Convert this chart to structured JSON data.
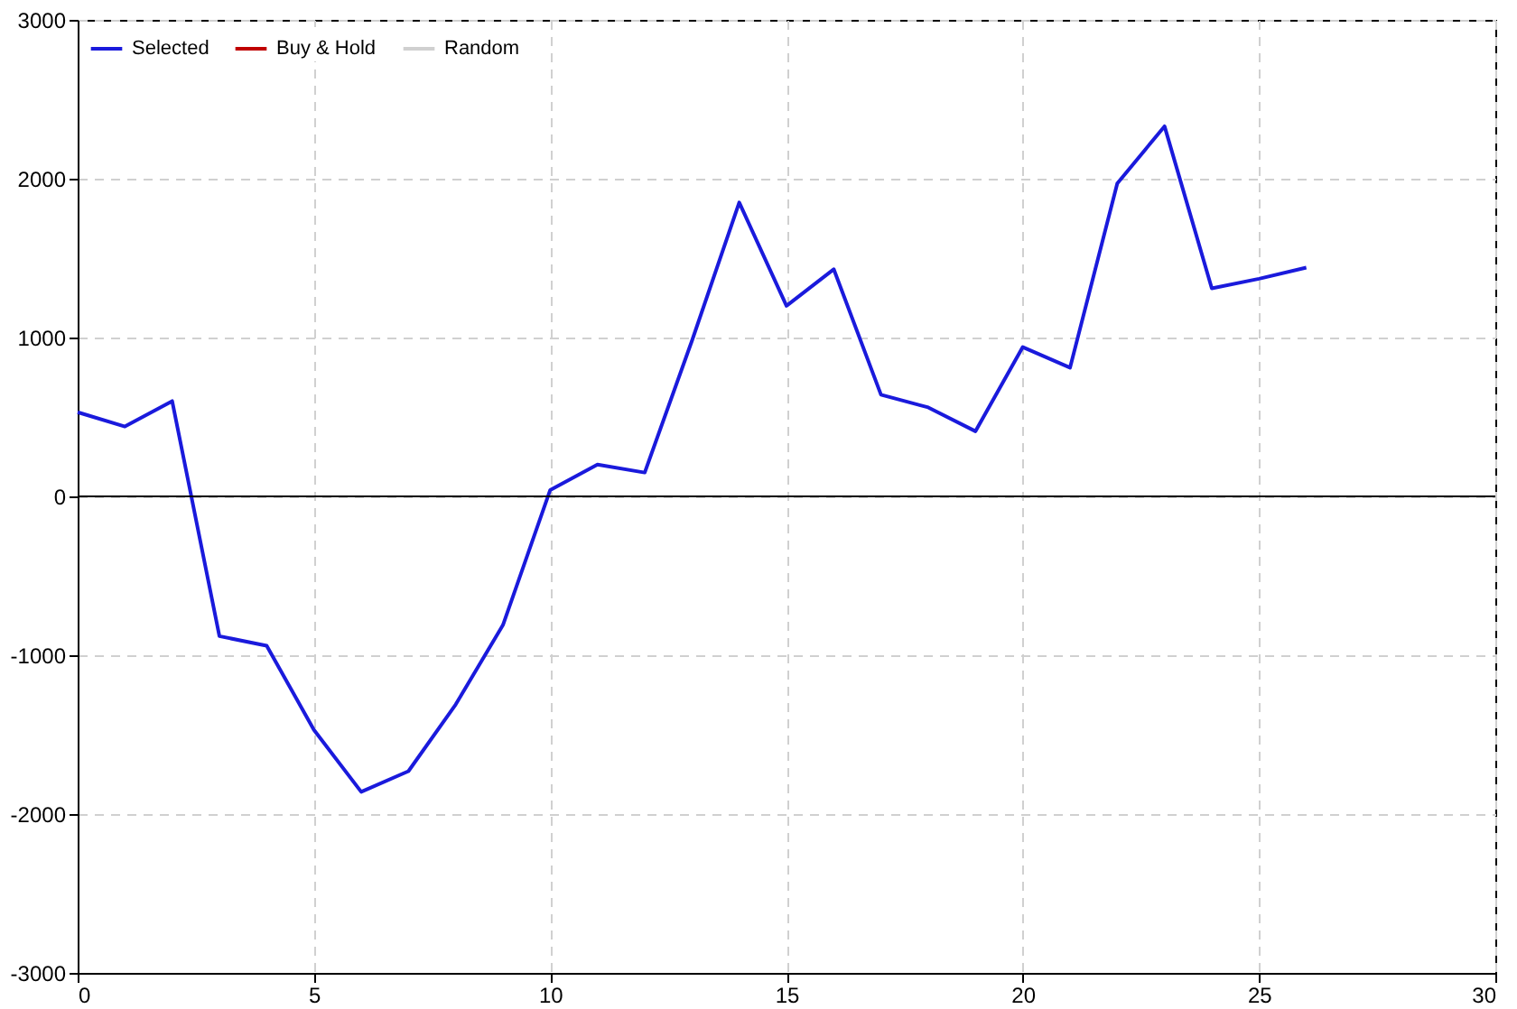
{
  "chart_data": {
    "type": "line",
    "x": [
      0,
      1,
      2,
      3,
      4,
      5,
      6,
      7,
      8,
      9,
      10,
      11,
      12,
      13,
      14,
      15,
      16,
      17,
      18,
      19,
      20,
      21,
      22,
      23,
      24,
      25,
      26
    ],
    "series": [
      {
        "name": "Selected",
        "color": "#1a1adc",
        "values": [
          530,
          440,
          600,
          -880,
          -940,
          -1470,
          -1860,
          -1730,
          -1310,
          -810,
          40,
          200,
          150,
          980,
          1850,
          1200,
          1430,
          640,
          560,
          410,
          940,
          810,
          1970,
          2330,
          1310,
          1370,
          1440
        ]
      },
      {
        "name": "Buy & Hold",
        "color": "#c00000",
        "values": [
          null,
          null,
          null,
          null,
          null,
          null,
          null,
          null,
          null,
          null,
          null,
          null,
          null,
          null,
          null,
          null,
          null,
          null,
          null,
          null,
          null,
          null,
          null,
          null,
          null,
          null,
          null
        ]
      },
      {
        "name": "Random",
        "color": "#d0d0d0",
        "values": [
          null,
          null,
          null,
          null,
          null,
          null,
          null,
          null,
          null,
          null,
          null,
          null,
          null,
          null,
          null,
          null,
          null,
          null,
          null,
          null,
          null,
          null,
          null,
          null,
          null,
          null,
          null
        ]
      }
    ],
    "xlim": [
      0,
      30
    ],
    "xticks": [
      0,
      5,
      10,
      15,
      20,
      25,
      30
    ],
    "ylim": [
      -3000,
      3000
    ],
    "yticks": [
      -3000,
      -2000,
      -1000,
      0,
      1000,
      2000,
      3000
    ],
    "ref_lines": [
      {
        "axis": "y",
        "value": 0,
        "color": "#000000"
      }
    ],
    "grid": true,
    "legend": "top left",
    "line_style": "solid"
  }
}
